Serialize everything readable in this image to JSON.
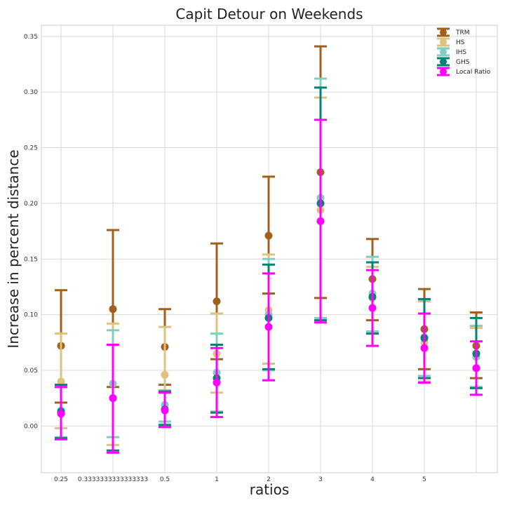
{
  "chart_data": {
    "type": "scatter",
    "title": "Capit Detour on Weekends",
    "xlabel": "ratios",
    "ylabel": "Increase in percent distance",
    "categories": [
      "0.25",
      "0.3333333333333333",
      "0.5",
      "1",
      "2",
      "3",
      "4",
      "5",
      ""
    ],
    "ylim": [
      -0.042,
      0.36
    ],
    "yticks": [
      "0.00",
      "0.05",
      "0.10",
      "0.15",
      "0.20",
      "0.25",
      "0.30",
      "0.35"
    ],
    "grid": true,
    "legend_position": "top-right",
    "series": [
      {
        "name": "TRM",
        "color": "#a0611f",
        "values": [
          0.072,
          0.105,
          0.071,
          0.112,
          0.171,
          0.228,
          0.132,
          0.087,
          0.072
        ],
        "lower": [
          0.021,
          0.035,
          0.037,
          0.06,
          0.119,
          0.115,
          0.095,
          0.051,
          0.043
        ],
        "upper": [
          0.122,
          0.176,
          0.105,
          0.164,
          0.224,
          0.341,
          0.168,
          0.123,
          0.102
        ]
      },
      {
        "name": "HS",
        "color": "#dfc27d",
        "values": [
          0.04,
          0.038,
          0.046,
          0.065,
          0.104,
          0.194,
          0.115,
          0.075,
          0.062
        ],
        "lower": [
          -0.002,
          -0.017,
          0.004,
          0.03,
          0.056,
          0.095,
          0.085,
          0.04,
          0.035
        ],
        "upper": [
          0.083,
          0.092,
          0.089,
          0.101,
          0.154,
          0.295,
          0.143,
          0.112,
          0.088
        ]
      },
      {
        "name": "IHS",
        "color": "#80cdc1",
        "values": [
          0.014,
          0.038,
          0.019,
          0.048,
          0.1,
          0.205,
          0.119,
          0.08,
          0.062
        ],
        "lower": [
          -0.01,
          -0.01,
          0.004,
          0.013,
          0.05,
          0.097,
          0.085,
          0.045,
          0.035
        ],
        "upper": [
          0.037,
          0.086,
          0.032,
          0.083,
          0.15,
          0.312,
          0.152,
          0.113,
          0.09
        ]
      },
      {
        "name": "GHS",
        "color": "#018571",
        "values": [
          0.013,
          0.025,
          0.015,
          0.043,
          0.097,
          0.2,
          0.116,
          0.079,
          0.065
        ],
        "lower": [
          -0.011,
          -0.022,
          0.001,
          0.012,
          0.051,
          0.095,
          0.083,
          0.043,
          0.034
        ],
        "upper": [
          0.037,
          0.073,
          0.031,
          0.073,
          0.145,
          0.304,
          0.147,
          0.114,
          0.097
        ]
      },
      {
        "name": "Local Ratio",
        "color": "#ff00ff",
        "values": [
          0.011,
          0.025,
          0.014,
          0.039,
          0.089,
          0.184,
          0.106,
          0.07,
          0.052
        ],
        "lower": [
          -0.012,
          -0.024,
          -0.001,
          0.008,
          0.041,
          0.093,
          0.072,
          0.039,
          0.028
        ],
        "upper": [
          0.035,
          0.073,
          0.03,
          0.07,
          0.137,
          0.275,
          0.14,
          0.101,
          0.076
        ]
      }
    ]
  }
}
